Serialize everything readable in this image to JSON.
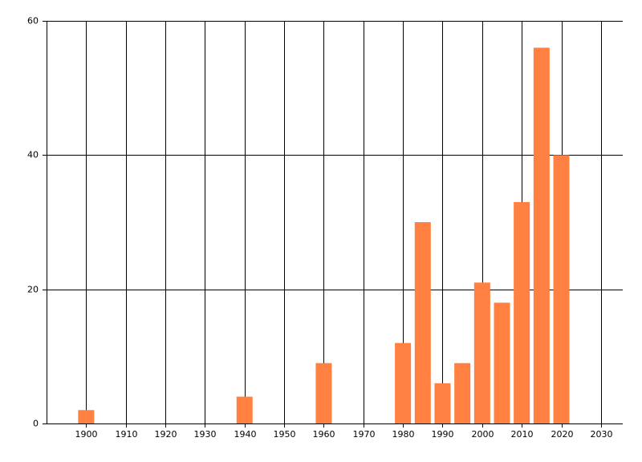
{
  "chart_data": {
    "type": "bar",
    "x": [
      1900,
      1940,
      1960,
      1980,
      1985,
      1990,
      1995,
      2000,
      2005,
      2010,
      2015,
      2020
    ],
    "values": [
      2,
      4,
      9,
      12,
      30,
      6,
      9,
      21,
      18,
      33,
      56,
      40
    ],
    "color": "#ff8040",
    "xlim": [
      1890,
      2035.5
    ],
    "xticks": [
      1900,
      1910,
      1920,
      1930,
      1940,
      1950,
      1960,
      1970,
      1980,
      1990,
      2000,
      2010,
      2020,
      2030
    ],
    "ylim": [
      0,
      60
    ],
    "yticks": [
      0,
      20,
      40,
      60
    ],
    "grid": true
  }
}
